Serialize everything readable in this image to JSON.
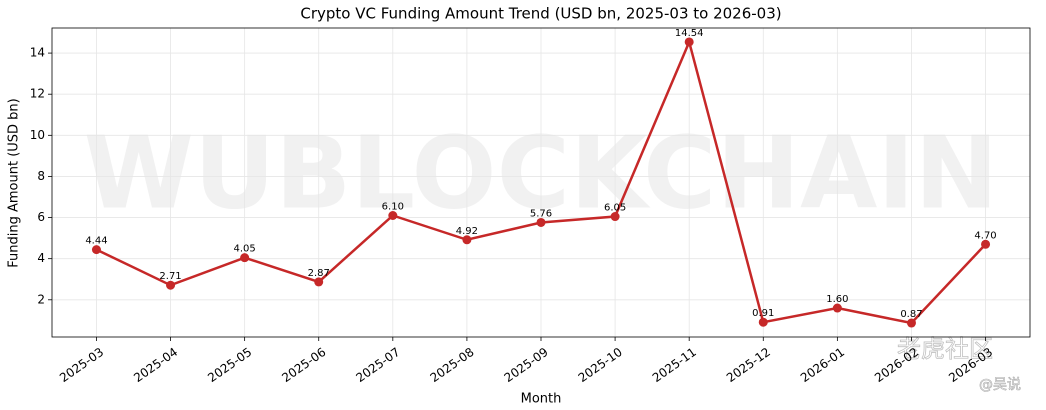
{
  "chart_data": {
    "type": "line",
    "title": "Crypto VC Funding Amount Trend (USD bn, 2025-03 to 2026-03)",
    "x_label": "Month",
    "y_label": "Funding Amount (USD bn)",
    "categories": [
      "2025-03",
      "2025-04",
      "2025-05",
      "2025-06",
      "2025-07",
      "2025-08",
      "2025-09",
      "2025-10",
      "2025-11",
      "2025-12",
      "2026-01",
      "2026-02",
      "2026-03"
    ],
    "series": [
      {
        "name": "Funding Amount",
        "color": "#c62828",
        "values": [
          4.44,
          2.71,
          4.05,
          2.87,
          6.1,
          4.92,
          5.76,
          6.05,
          14.54,
          0.91,
          1.6,
          0.87,
          4.7
        ],
        "value_labels": [
          "4.44",
          "2.71",
          "4.05",
          "2.87",
          "6.10",
          "4.92",
          "5.76",
          "6.05",
          "14.54",
          "0.91",
          "1.60",
          "0.87",
          "4.70"
        ]
      }
    ],
    "ylim": [
      0.19,
      15.22
    ],
    "yticks": [
      2,
      4,
      6,
      8,
      10,
      12,
      14
    ],
    "grid": true,
    "watermarks": [
      "WUBLOCKCHAIN",
      "老虎社区",
      "@吴说"
    ]
  }
}
